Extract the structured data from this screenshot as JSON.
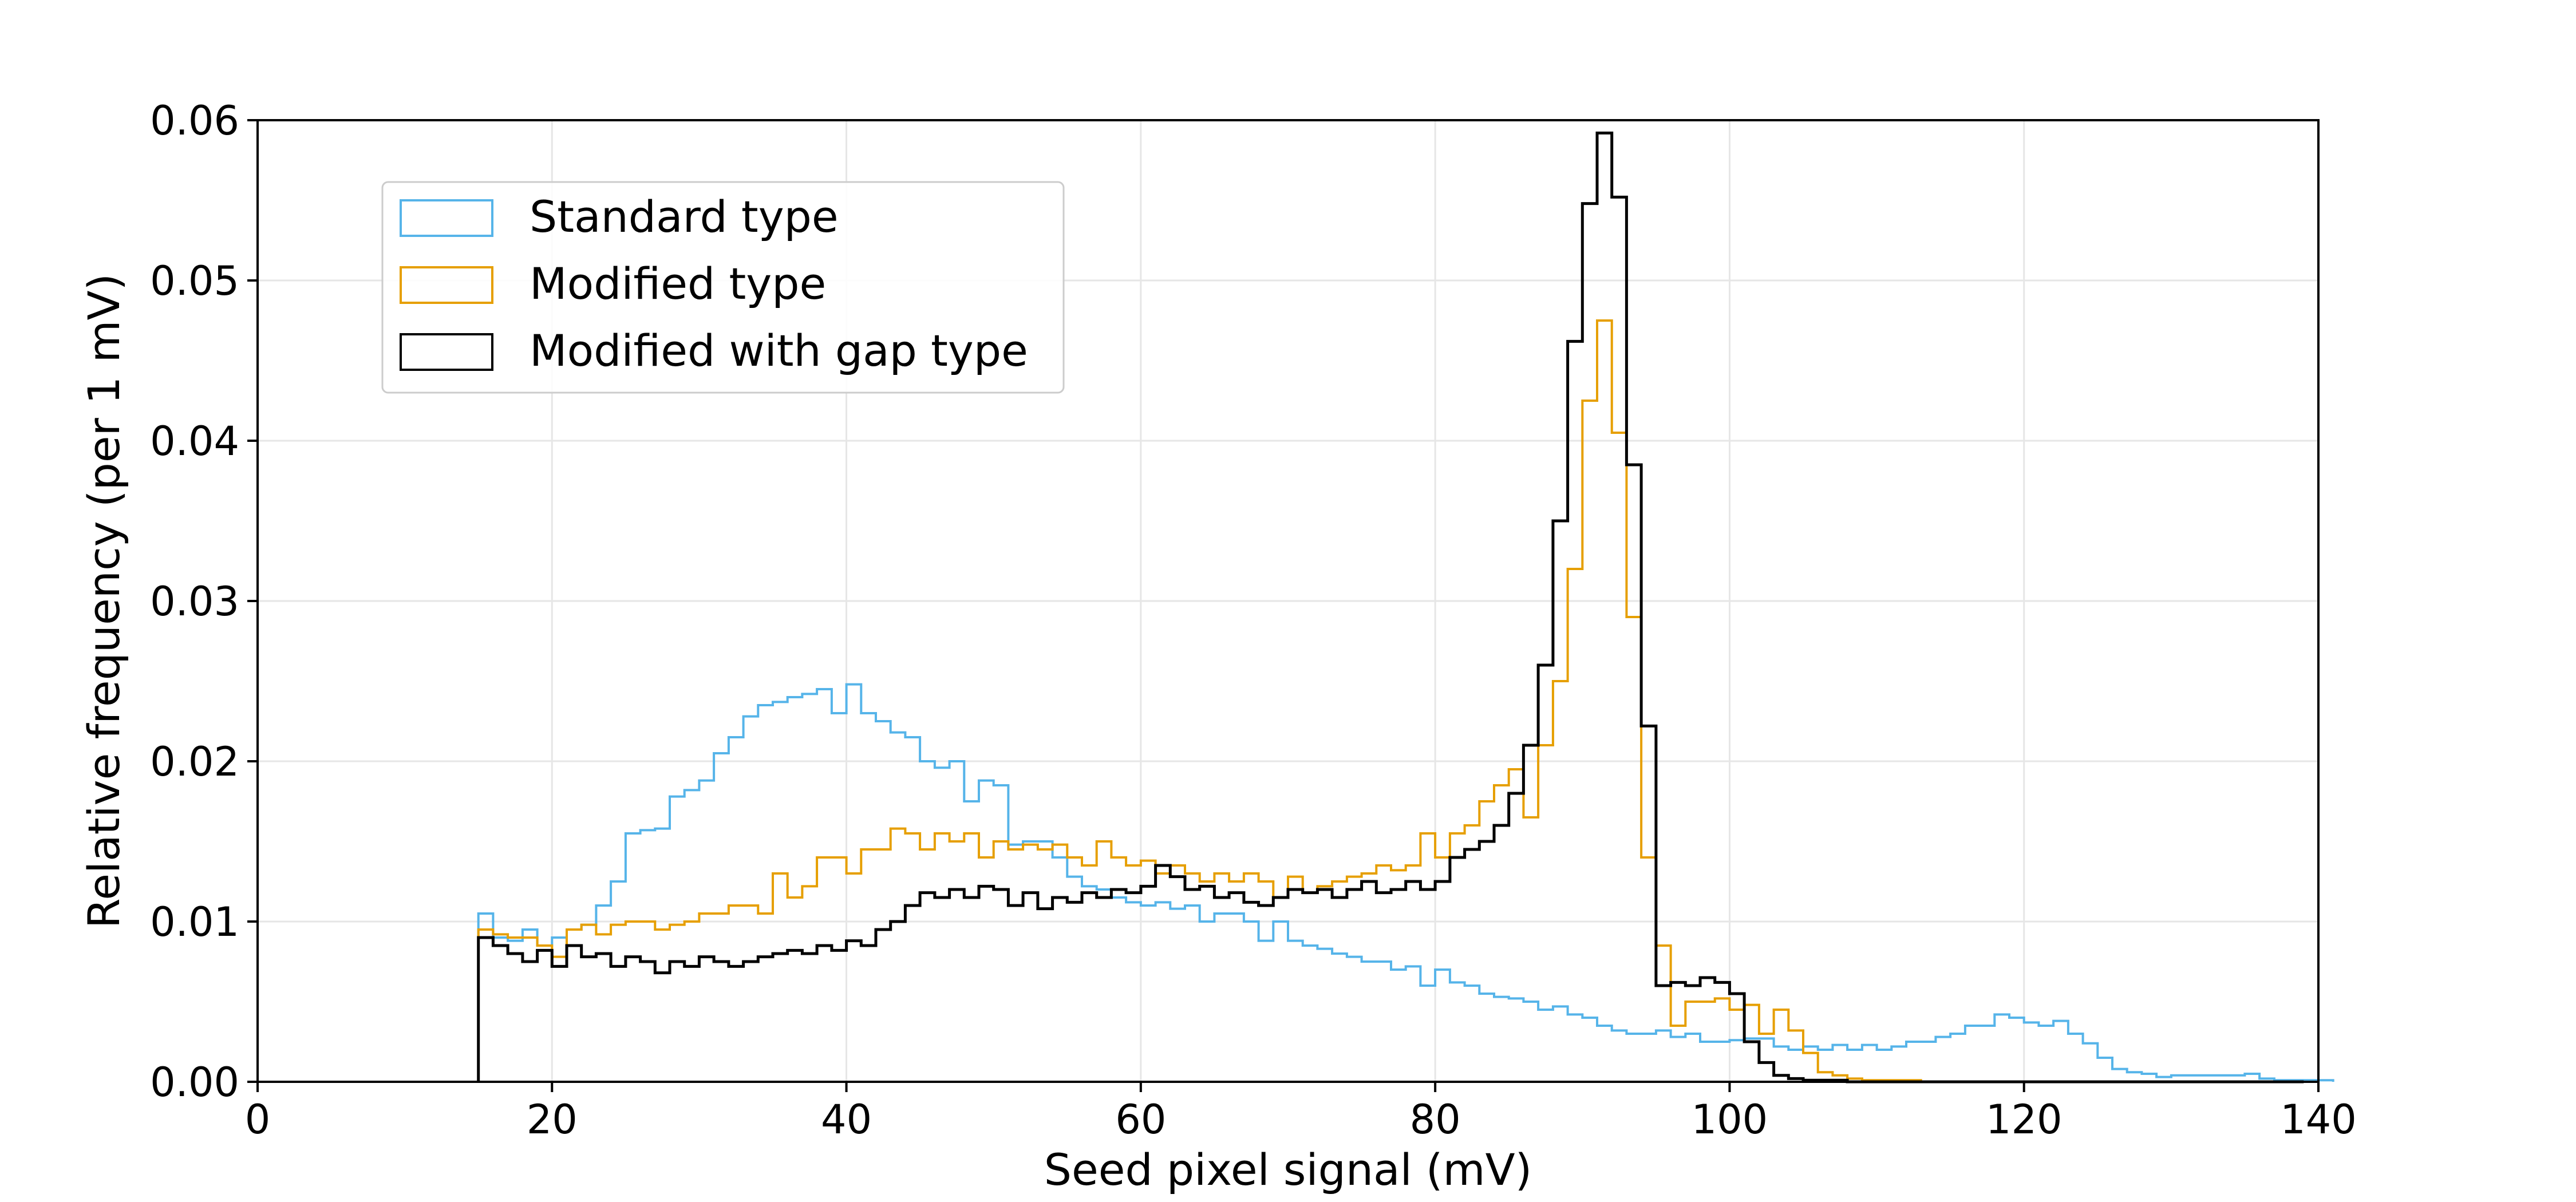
{
  "chart_data": {
    "type": "histogram",
    "title": "",
    "xlabel": "Seed pixel signal (mV)",
    "ylabel": "Relative frequency (per 1 mV)",
    "xlim": [
      0,
      140
    ],
    "ylim": [
      0,
      0.06
    ],
    "xticks": [
      0,
      20,
      40,
      60,
      80,
      100,
      120,
      140
    ],
    "xtick_labels": [
      "0",
      "20",
      "40",
      "60",
      "80",
      "100",
      "120",
      "140"
    ],
    "yticks": [
      0,
      0.01,
      0.02,
      0.03,
      0.04,
      0.05,
      0.06
    ],
    "ytick_labels": [
      "0.00",
      "0.01",
      "0.02",
      "0.03",
      "0.04",
      "0.05",
      "0.06"
    ],
    "grid": true,
    "legend_position": "upper-left",
    "bin_width": 1,
    "bin_start": 15,
    "series": [
      {
        "name": "Standard type",
        "color": "#56b4e9",
        "values": [
          0.0105,
          0.009,
          0.0088,
          0.0095,
          0.0085,
          0.009,
          0.0095,
          0.0098,
          0.011,
          0.0125,
          0.0155,
          0.0157,
          0.0158,
          0.0178,
          0.0182,
          0.0188,
          0.0205,
          0.0215,
          0.0228,
          0.0235,
          0.0237,
          0.024,
          0.0242,
          0.0245,
          0.023,
          0.0248,
          0.023,
          0.0225,
          0.0218,
          0.0215,
          0.02,
          0.0196,
          0.02,
          0.0175,
          0.0188,
          0.0185,
          0.0148,
          0.015,
          0.015,
          0.014,
          0.0128,
          0.0122,
          0.012,
          0.0115,
          0.0112,
          0.011,
          0.0112,
          0.0108,
          0.011,
          0.01,
          0.0105,
          0.0105,
          0.01,
          0.0088,
          0.01,
          0.0088,
          0.0085,
          0.0083,
          0.008,
          0.0078,
          0.0075,
          0.0075,
          0.007,
          0.0072,
          0.006,
          0.007,
          0.0062,
          0.006,
          0.0055,
          0.0053,
          0.0052,
          0.005,
          0.0045,
          0.0047,
          0.0042,
          0.004,
          0.0035,
          0.0032,
          0.003,
          0.003,
          0.0032,
          0.0028,
          0.003,
          0.0025,
          0.0025,
          0.0026,
          0.0027,
          0.0027,
          0.0022,
          0.002,
          0.0022,
          0.002,
          0.0023,
          0.002,
          0.0023,
          0.002,
          0.0022,
          0.0025,
          0.0025,
          0.0028,
          0.003,
          0.0035,
          0.0035,
          0.0042,
          0.004,
          0.0037,
          0.0035,
          0.0038,
          0.003,
          0.0024,
          0.0015,
          0.0008,
          0.0006,
          0.0005,
          0.0003,
          0.0004,
          0.0004,
          0.0004,
          0.0004,
          0.0004,
          0.0005,
          0.0002,
          0.0001,
          0.0001,
          0.0001,
          0.0001
        ]
      },
      {
        "name": "Modified type",
        "color": "#e69f00",
        "values": [
          0.0095,
          0.0092,
          0.009,
          0.009,
          0.0085,
          0.0078,
          0.0095,
          0.0098,
          0.0092,
          0.0098,
          0.01,
          0.01,
          0.0095,
          0.0098,
          0.01,
          0.0105,
          0.0105,
          0.011,
          0.011,
          0.0105,
          0.013,
          0.0115,
          0.0122,
          0.014,
          0.014,
          0.013,
          0.0145,
          0.0145,
          0.0158,
          0.0155,
          0.0145,
          0.0155,
          0.015,
          0.0155,
          0.014,
          0.015,
          0.0145,
          0.0148,
          0.0145,
          0.0148,
          0.014,
          0.0135,
          0.015,
          0.014,
          0.0135,
          0.0138,
          0.013,
          0.0135,
          0.013,
          0.0125,
          0.013,
          0.0125,
          0.013,
          0.0125,
          0.0115,
          0.0128,
          0.0118,
          0.0122,
          0.0125,
          0.0128,
          0.013,
          0.0135,
          0.0132,
          0.0135,
          0.0155,
          0.014,
          0.0155,
          0.016,
          0.0175,
          0.0185,
          0.0195,
          0.0165,
          0.021,
          0.025,
          0.032,
          0.0425,
          0.0475,
          0.0405,
          0.029,
          0.014,
          0.0085,
          0.0035,
          0.005,
          0.005,
          0.0052,
          0.0045,
          0.0048,
          0.003,
          0.0045,
          0.0032,
          0.0018,
          0.0006,
          0.0004,
          0.0002,
          0.0001,
          0.0001,
          0.0001,
          0.0001,
          0,
          0,
          0,
          0,
          0,
          0,
          0,
          0,
          0,
          0,
          0,
          0,
          0,
          0,
          0,
          0,
          0,
          0,
          0,
          0,
          0,
          0,
          0,
          0,
          0,
          0,
          0
        ]
      },
      {
        "name": "Modified with gap type",
        "color": "#000000",
        "values": [
          0.009,
          0.0085,
          0.008,
          0.0075,
          0.0082,
          0.0072,
          0.0085,
          0.0078,
          0.008,
          0.0072,
          0.0078,
          0.0075,
          0.0068,
          0.0075,
          0.0072,
          0.0078,
          0.0075,
          0.0072,
          0.0075,
          0.0078,
          0.008,
          0.0082,
          0.008,
          0.0085,
          0.0082,
          0.0088,
          0.0085,
          0.0095,
          0.01,
          0.011,
          0.0118,
          0.0115,
          0.012,
          0.0115,
          0.0122,
          0.012,
          0.011,
          0.0118,
          0.0108,
          0.0115,
          0.0112,
          0.0118,
          0.0115,
          0.012,
          0.0118,
          0.0122,
          0.0135,
          0.0128,
          0.012,
          0.0122,
          0.0115,
          0.0118,
          0.0112,
          0.011,
          0.0115,
          0.012,
          0.0118,
          0.012,
          0.0115,
          0.012,
          0.0125,
          0.0118,
          0.012,
          0.0125,
          0.012,
          0.0125,
          0.014,
          0.0145,
          0.015,
          0.016,
          0.018,
          0.021,
          0.026,
          0.035,
          0.0462,
          0.0548,
          0.0592,
          0.0552,
          0.0385,
          0.0222,
          0.006,
          0.0062,
          0.006,
          0.0065,
          0.0062,
          0.0055,
          0.0025,
          0.0012,
          0.0004,
          0.0002,
          0.0001,
          0.0001,
          0.0001,
          0,
          0,
          0,
          0,
          0,
          0,
          0,
          0,
          0,
          0,
          0,
          0,
          0,
          0,
          0,
          0,
          0,
          0,
          0,
          0,
          0,
          0,
          0,
          0,
          0,
          0,
          0,
          0,
          0,
          0,
          0
        ]
      }
    ]
  }
}
